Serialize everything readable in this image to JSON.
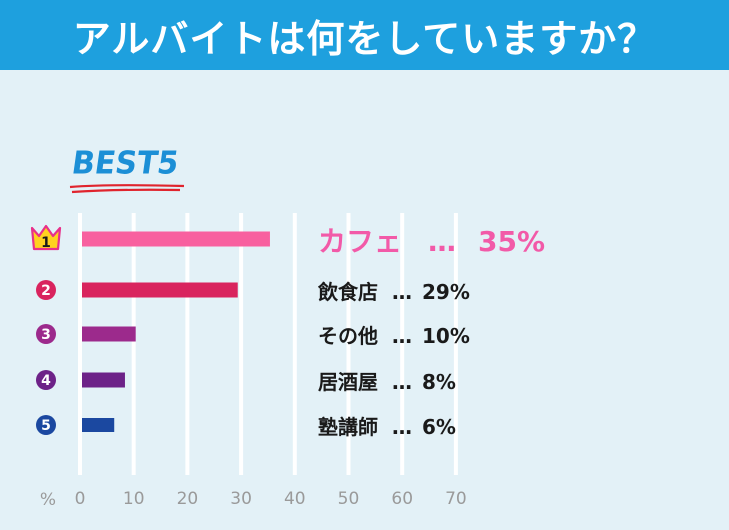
{
  "header": {
    "title": "アルバイトは何をしていますか？"
  },
  "best_label": "BEST5",
  "colors": {
    "header_bg": "#1ea0de",
    "background": "#e3f1f7",
    "rank1": "#f8609f",
    "rank2": "#d9245e",
    "rank3": "#9c2a8c",
    "rank4": "#6d2288",
    "rank5": "#1b48a0"
  },
  "chart_data": {
    "type": "bar",
    "orientation": "horizontal",
    "categories": [
      "カフェ",
      "飲食店",
      "その他",
      "居酒屋",
      "塾講師"
    ],
    "values": [
      35,
      29,
      10,
      8,
      6
    ],
    "value_labels": [
      "35%",
      "29%",
      "10%",
      "8%",
      "6%"
    ],
    "ranks": [
      "1",
      "2",
      "3",
      "4",
      "5"
    ],
    "separator": "…",
    "xlim": [
      0,
      70
    ],
    "xticks": [
      "0",
      "10",
      "20",
      "30",
      "40",
      "50",
      "60",
      "70"
    ],
    "xlabel": "%",
    "grid": true
  }
}
